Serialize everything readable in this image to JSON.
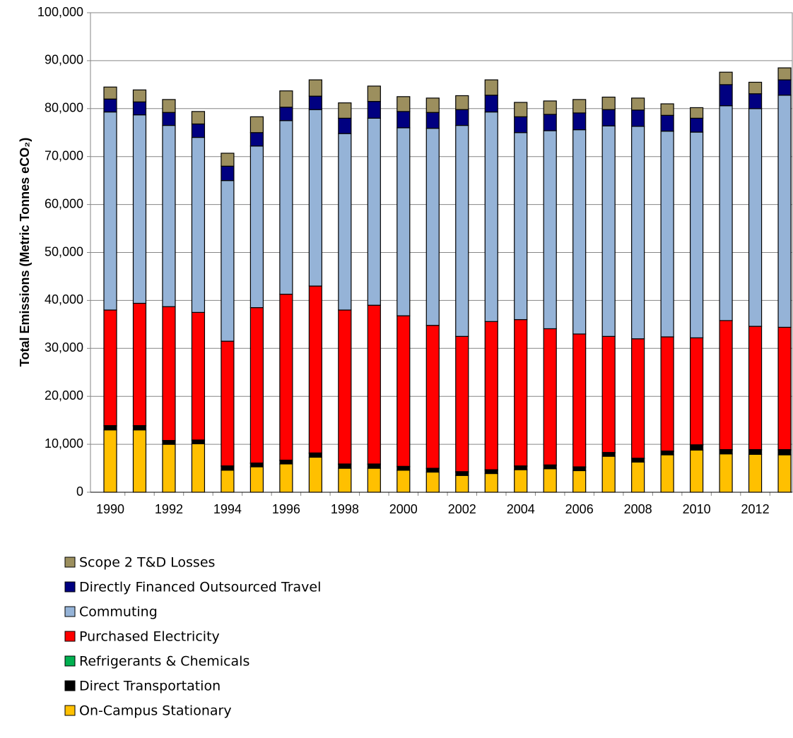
{
  "chart_data": {
    "type": "stacked_bar",
    "ylabel": "Total Emissions (Metric Tonnes eCO₂)",
    "categories": [
      "1990",
      null,
      "1992",
      null,
      "1994",
      null,
      "1996",
      null,
      "1998",
      null,
      "2000",
      null,
      "2002",
      null,
      "2004",
      null,
      "2006",
      null,
      "2008",
      null,
      "2010",
      null,
      "2012",
      null
    ],
    "ylim": [
      0,
      100000
    ],
    "yticks": [
      0,
      {
        "value": 10000,
        "label": "10,000"
      },
      {
        "value": 20000,
        "label": "20,000"
      },
      {
        "value": 30000,
        "label": "30,000"
      },
      {
        "value": 40000,
        "label": "40,000"
      },
      {
        "value": 50000,
        "label": "50,000"
      },
      {
        "value": 60000,
        "label": "60,000"
      },
      {
        "value": 70000,
        "label": "70,000"
      },
      {
        "value": 80000,
        "label": "80,000"
      },
      {
        "value": 90000,
        "label": "90,000"
      },
      {
        "value": 100000,
        "label": "100,000"
      }
    ],
    "grid": true,
    "legend": "bottom-left",
    "series": [
      {
        "name": "On-Campus Stationary",
        "color": "#ffc000",
        "values": [
          13000,
          13000,
          10000,
          10100,
          4600,
          5300,
          5900,
          7300,
          5000,
          5000,
          4600,
          4200,
          3500,
          3900,
          4700,
          4900,
          4500,
          7500,
          6300,
          7800,
          8800,
          8000,
          7900,
          7800
        ]
      },
      {
        "name": "Direct Transportation",
        "color": "#000000",
        "values": [
          800,
          800,
          700,
          700,
          800,
          700,
          700,
          800,
          800,
          800,
          700,
          700,
          700,
          700,
          700,
          700,
          700,
          700,
          700,
          700,
          1000,
          800,
          900,
          1000
        ]
      },
      {
        "name": "Refrigerants & Chemicals",
        "color": "#00b050",
        "values": [
          100,
          100,
          100,
          100,
          100,
          100,
          100,
          100,
          100,
          100,
          100,
          100,
          100,
          100,
          100,
          100,
          100,
          100,
          100,
          100,
          100,
          100,
          100,
          100
        ]
      },
      {
        "name": "Purchased Electricity",
        "color": "#ff0000",
        "values": [
          24100,
          25500,
          27900,
          26600,
          26000,
          32400,
          34600,
          34800,
          32100,
          33100,
          31400,
          29800,
          28200,
          30900,
          30500,
          28400,
          27700,
          24200,
          24900,
          23800,
          22300,
          26900,
          25700,
          25500
        ]
      },
      {
        "name": "Commuting",
        "color": "#95b3d7",
        "values": [
          41300,
          39300,
          37800,
          36500,
          33500,
          33700,
          36200,
          36800,
          36800,
          39000,
          39200,
          41100,
          44000,
          43700,
          39000,
          41300,
          42600,
          43900,
          44300,
          42900,
          42900,
          44800,
          45400,
          48400
        ]
      },
      {
        "name": "Directly Financed Outsourced Travel",
        "color": "#000080",
        "values": [
          2700,
          2700,
          2700,
          2800,
          3000,
          2800,
          2800,
          2800,
          3200,
          3500,
          3400,
          3300,
          3300,
          3500,
          3300,
          3400,
          3500,
          3400,
          3400,
          3300,
          2900,
          4400,
          3100,
          3200
        ]
      },
      {
        "name": "Scope 2 T&D Losses",
        "color": "#9c8f5e",
        "values": [
          2500,
          2500,
          2700,
          2600,
          2700,
          3300,
          3400,
          3400,
          3200,
          3200,
          3100,
          3000,
          2900,
          3200,
          3000,
          2800,
          2800,
          2600,
          2500,
          2400,
          2200,
          2600,
          2400,
          2500
        ]
      }
    ]
  }
}
